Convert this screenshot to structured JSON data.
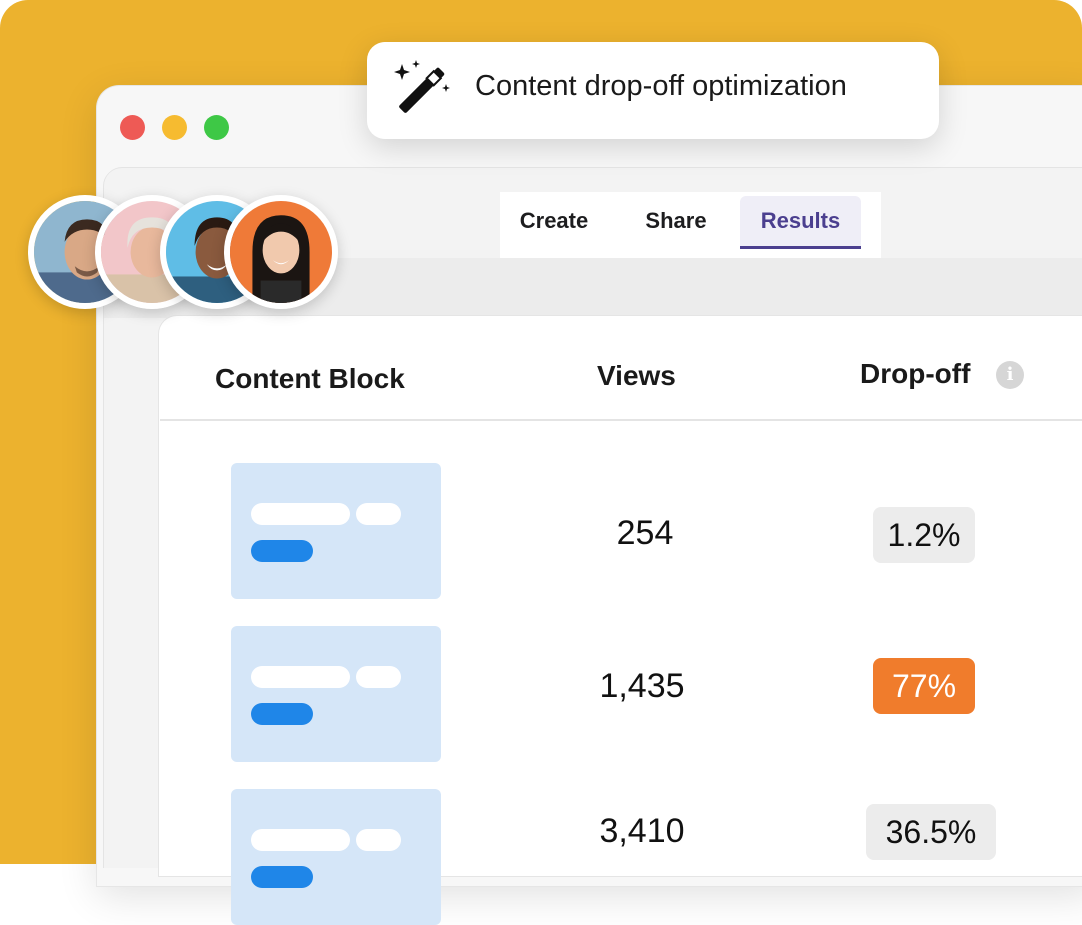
{
  "badge": {
    "title": "Content drop-off optimization",
    "icon": "magic-wand-icon"
  },
  "window": {
    "controls": [
      "close",
      "minimize",
      "maximize"
    ]
  },
  "tabs": [
    {
      "label": "Create",
      "active": false
    },
    {
      "label": "Share",
      "active": false
    },
    {
      "label": "Results",
      "active": true
    }
  ],
  "table": {
    "columns": {
      "block": "Content Block",
      "views": "Views",
      "dropoff": "Drop-off"
    },
    "rows": [
      {
        "views": "254",
        "dropoff": "1.2%",
        "highlight": false
      },
      {
        "views": "1,435",
        "dropoff": "77%",
        "highlight": true
      },
      {
        "views": "3,410",
        "dropoff": "36.5%",
        "highlight": false
      }
    ]
  },
  "colors": {
    "background": "#ecb22e",
    "accent": "#4b3f8f",
    "alert": "#f07c2c",
    "block_fill": "#d5e6f8",
    "block_button": "#1f86e8"
  }
}
